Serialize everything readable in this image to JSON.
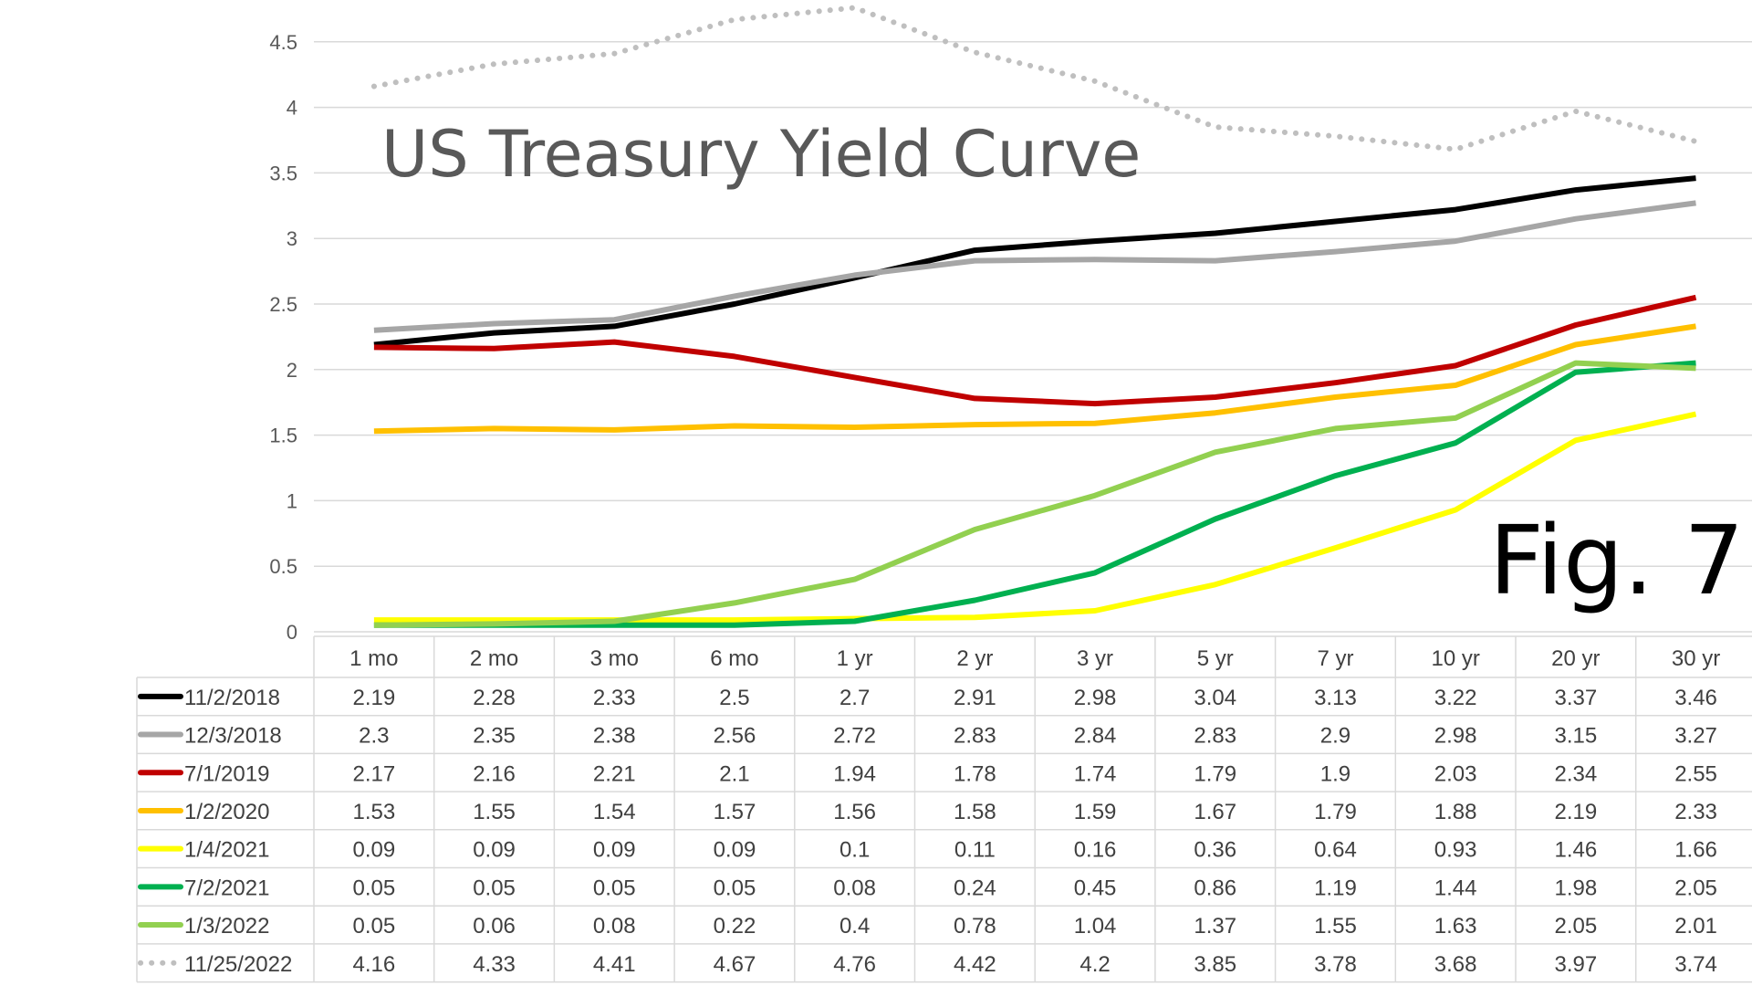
{
  "chart_data": {
    "type": "line",
    "title": "US Treasury Yield Curve",
    "annotation": "Fig. 7",
    "categories": [
      "1 mo",
      "2 mo",
      "3 mo",
      "6 mo",
      "1 yr",
      "2 yr",
      "3 yr",
      "5 yr",
      "7 yr",
      "10 yr",
      "20 yr",
      "30 yr"
    ],
    "ylim": [
      0,
      4.75
    ],
    "yticks": [
      "0",
      "0.5",
      "1",
      "1.5",
      "2",
      "2.5",
      "3",
      "3.5",
      "4",
      "4.5"
    ],
    "grid": true,
    "legend": "data table below chart",
    "series": [
      {
        "name": "11/2/2018",
        "color": "#000000",
        "style": "solid",
        "values": [
          2.19,
          2.28,
          2.33,
          2.5,
          2.7,
          2.91,
          2.98,
          3.04,
          3.13,
          3.22,
          3.37,
          3.46
        ]
      },
      {
        "name": "12/3/2018",
        "color": "#a6a6a6",
        "style": "solid",
        "values": [
          2.3,
          2.35,
          2.38,
          2.56,
          2.72,
          2.83,
          2.84,
          2.83,
          2.9,
          2.98,
          3.15,
          3.27
        ]
      },
      {
        "name": "7/1/2019",
        "color": "#c00000",
        "style": "solid",
        "values": [
          2.17,
          2.16,
          2.21,
          2.1,
          1.94,
          1.78,
          1.74,
          1.79,
          1.9,
          2.03,
          2.34,
          2.55
        ]
      },
      {
        "name": "1/2/2020",
        "color": "#ffc000",
        "style": "solid",
        "values": [
          1.53,
          1.55,
          1.54,
          1.57,
          1.56,
          1.58,
          1.59,
          1.67,
          1.79,
          1.88,
          2.19,
          2.33
        ]
      },
      {
        "name": "1/4/2021",
        "color": "#ffff00",
        "style": "solid",
        "values": [
          0.09,
          0.09,
          0.09,
          0.09,
          0.1,
          0.11,
          0.16,
          0.36,
          0.64,
          0.93,
          1.46,
          1.66
        ]
      },
      {
        "name": "7/2/2021",
        "color": "#00b050",
        "style": "solid",
        "values": [
          0.05,
          0.05,
          0.05,
          0.05,
          0.08,
          0.24,
          0.45,
          0.86,
          1.19,
          1.44,
          1.98,
          2.05
        ]
      },
      {
        "name": "1/3/2022",
        "color": "#92d050",
        "style": "solid",
        "values": [
          0.05,
          0.06,
          0.08,
          0.22,
          0.4,
          0.78,
          1.04,
          1.37,
          1.55,
          1.63,
          2.05,
          2.01
        ]
      },
      {
        "name": "11/25/2022",
        "color": "#bfbfbf",
        "style": "dotted",
        "values": [
          4.16,
          4.33,
          4.41,
          4.67,
          4.76,
          4.42,
          4.2,
          3.85,
          3.78,
          3.68,
          3.97,
          3.74
        ]
      }
    ]
  }
}
